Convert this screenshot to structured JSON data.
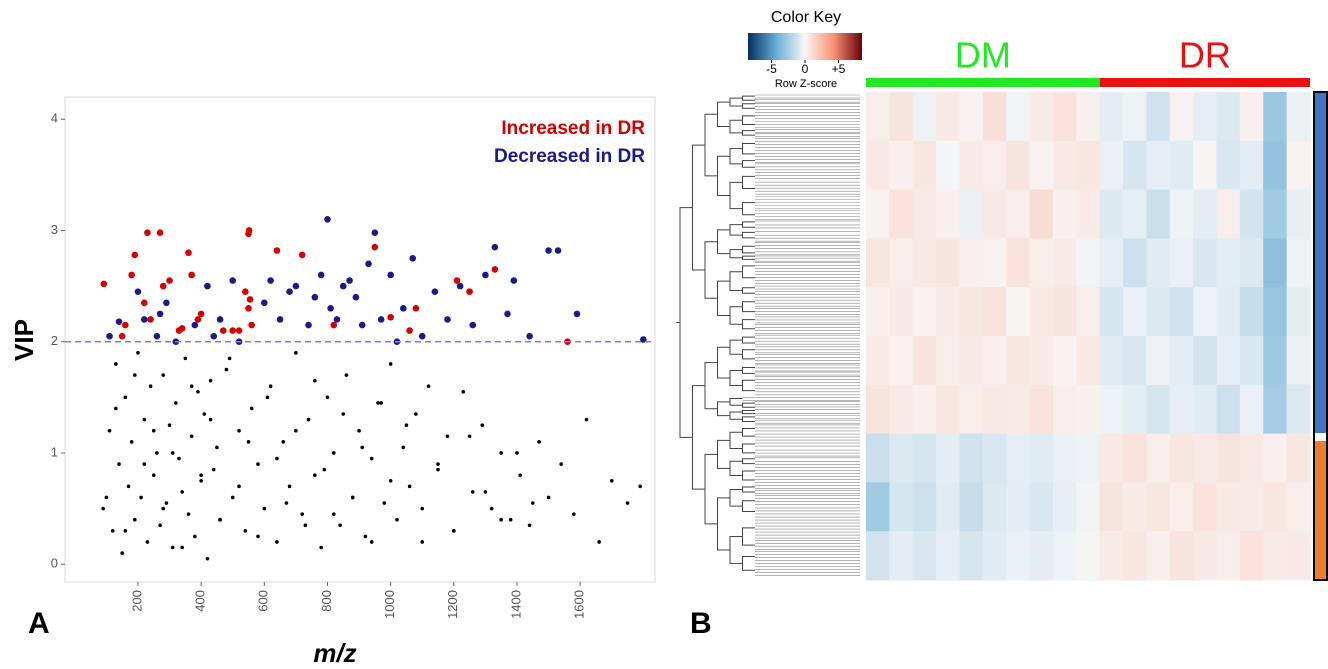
{
  "chart_data": [
    {
      "type": "scatter",
      "panel_label": "A",
      "x_label": "m/z",
      "y_label": "VIP",
      "xlim": [
        -31,
        1837
      ],
      "ylim": [
        -0.16,
        4.2
      ],
      "xticks": [
        200,
        400,
        600,
        800,
        1000,
        1200,
        1400,
        1600
      ],
      "yticks": [
        0,
        1,
        2,
        3,
        4
      ],
      "threshold": 2,
      "threshold_color": "#7b7bff",
      "grid": false,
      "legend": "top-right",
      "series": [
        {
          "name": "Increased in DR",
          "color": "#d40000",
          "x": [
            92,
            150,
            160,
            180,
            190,
            220,
            230,
            240,
            270,
            280,
            300,
            330,
            340,
            360,
            370,
            390,
            400,
            470,
            500,
            520,
            540,
            550,
            550,
            552,
            555,
            560,
            640,
            720,
            820,
            950,
            1000,
            1060,
            1080,
            1210,
            1250,
            1330,
            1560
          ],
          "values": [
            2.52,
            2.05,
            2.15,
            2.6,
            2.78,
            2.35,
            2.98,
            2.2,
            2.98,
            2.5,
            2.55,
            2.1,
            2.12,
            2.8,
            2.6,
            2.2,
            2.25,
            2.1,
            2.1,
            2.1,
            2.45,
            2.3,
            2.97,
            3.0,
            2.38,
            2.15,
            2.82,
            2.78,
            2.15,
            2.85,
            2.22,
            2.1,
            2.3,
            2.55,
            2.45,
            2.65,
            2.0
          ]
        },
        {
          "name": "Decreased in DR",
          "color": "#1a1a8c",
          "x": [
            110,
            140,
            200,
            220,
            260,
            270,
            290,
            320,
            380,
            420,
            440,
            460,
            500,
            520,
            600,
            620,
            650,
            680,
            700,
            740,
            760,
            780,
            800,
            810,
            830,
            850,
            870,
            890,
            910,
            930,
            950,
            970,
            1000,
            1020,
            1040,
            1070,
            1100,
            1140,
            1180,
            1220,
            1260,
            1300,
            1330,
            1370,
            1390,
            1440,
            1500,
            1530,
            1590,
            1800
          ],
          "values": [
            2.05,
            2.18,
            2.45,
            2.2,
            2.05,
            2.25,
            2.35,
            2.0,
            2.15,
            2.5,
            2.05,
            2.2,
            2.55,
            2.0,
            2.35,
            2.55,
            2.2,
            2.45,
            2.5,
            2.15,
            2.4,
            2.6,
            3.1,
            2.3,
            2.2,
            2.5,
            2.55,
            2.4,
            2.15,
            2.7,
            2.98,
            2.2,
            2.6,
            2.0,
            2.3,
            2.75,
            2.05,
            2.45,
            2.2,
            2.5,
            2.15,
            2.6,
            2.85,
            2.25,
            2.55,
            2.05,
            2.82,
            2.82,
            2.25,
            2.02
          ]
        },
        {
          "color": "#000000",
          "x": [
            90,
            110,
            120,
            130,
            140,
            150,
            160,
            170,
            180,
            190,
            200,
            210,
            220,
            230,
            240,
            250,
            260,
            270,
            280,
            290,
            300,
            310,
            320,
            330,
            340,
            350,
            360,
            370,
            380,
            390,
            400,
            410,
            420,
            430,
            440,
            450,
            460,
            480,
            500,
            520,
            540,
            560,
            580,
            600,
            620,
            640,
            660,
            680,
            700,
            720,
            740,
            760,
            780,
            800,
            820,
            840,
            860,
            880,
            900,
            920,
            940,
            960,
            980,
            1000,
            1020,
            1040,
            1060,
            1080,
            1100,
            1120,
            1150,
            1180,
            1200,
            1230,
            1260,
            1290,
            1320,
            1350,
            1380,
            1410,
            1440,
            1470,
            1500,
            1540,
            1580,
            1620,
            1660,
            1700,
            1750,
            1790,
            100,
            130,
            160,
            190,
            220,
            250,
            280,
            310,
            340,
            370,
            400,
            430,
            460,
            490,
            520,
            550,
            580,
            610,
            640,
            670,
            700,
            730,
            760,
            790,
            820,
            850,
            880,
            910,
            940,
            970,
            1000,
            1050,
            1100,
            1150,
            1200,
            1250,
            1300,
            1350,
            1400,
            1450
          ],
          "values": [
            0.5,
            1.2,
            0.3,
            1.8,
            0.9,
            0.1,
            1.5,
            0.7,
            1.1,
            0.4,
            1.9,
            0.6,
            1.3,
            0.2,
            1.6,
            0.8,
            1.0,
            0.35,
            1.7,
            0.55,
            1.25,
            0.15,
            1.45,
            0.95,
            0.65,
            1.85,
            0.45,
            1.15,
            0.25,
            1.55,
            0.75,
            1.35,
            0.05,
            1.65,
            0.85,
            1.05,
            0.4,
            1.75,
            0.6,
            1.2,
            0.3,
            1.4,
            0.9,
            0.5,
            1.6,
            0.2,
            1.1,
            0.7,
            1.9,
            0.45,
            1.3,
            0.8,
            0.15,
            1.5,
            1.0,
            0.35,
            1.7,
            0.6,
            1.2,
            0.25,
            0.95,
            1.45,
            0.55,
            1.8,
            0.4,
            1.05,
            0.7,
            1.35,
            0.2,
            1.6,
            0.85,
            1.15,
            0.3,
            1.55,
            0.65,
            1.25,
            0.5,
            1.0,
            0.4,
            0.8,
            0.35,
            1.1,
            0.6,
            0.9,
            0.45,
            1.3,
            0.2,
            0.75,
            0.55,
            0.7,
            0.6,
            1.4,
            0.3,
            1.7,
            0.9,
            1.2,
            0.5,
            1.0,
            0.15,
            1.6,
            0.8,
            1.3,
            0.4,
            1.85,
            0.7,
            1.1,
            0.25,
            1.5,
            0.95,
            0.55,
            1.2,
            0.35,
            1.65,
            0.85,
            0.45,
            1.35,
            0.6,
            1.05,
            0.2,
            1.45,
            0.75,
            1.25,
            0.5,
            0.9,
            0.3,
            1.15,
            0.65,
            0.4,
            1.0,
            0.55
          ]
        }
      ]
    },
    {
      "type": "heatmap",
      "panel_label": "B",
      "key_title": "Color Key",
      "key_label": "Row Z-score",
      "zlim": [
        -8.5,
        8.5
      ],
      "zticks": [
        -5,
        0,
        {
          "value": 5,
          "label": "+5"
        }
      ],
      "colors": [
        "#053061",
        "#6baed6",
        "#f7f7f7",
        "#fc9272",
        "#67000d"
      ],
      "groups": [
        {
          "name": "DM",
          "color": "#22e822",
          "values": [
            [
              0.4,
              0.8,
              -0.3,
              0.6,
              0.2,
              1.0,
              -0.2,
              0.5,
              0.9,
              0.3
            ],
            [
              0.6,
              0.3,
              0.7,
              -0.1,
              0.5,
              0.4,
              0.8,
              0.2,
              0.6,
              0.7
            ],
            [
              0.2,
              0.9,
              0.5,
              0.3,
              -0.4,
              0.6,
              0.4,
              1.1,
              0.3,
              0.5
            ],
            [
              0.7,
              0.4,
              0.6,
              0.8,
              0.3,
              0.2,
              0.9,
              0.4,
              0.5,
              -0.2
            ],
            [
              0.3,
              0.6,
              0.2,
              0.5,
              0.7,
              0.9,
              0.1,
              0.6,
              0.8,
              0.4
            ],
            [
              0.5,
              0.2,
              0.8,
              0.4,
              0.6,
              0.3,
              0.7,
              0.5,
              0.2,
              0.6
            ],
            [
              0.8,
              0.5,
              0.3,
              0.7,
              0.4,
              0.6,
              0.5,
              0.9,
              0.4,
              0.3
            ],
            [
              -1.4,
              -0.8,
              -1.0,
              -0.6,
              -1.2,
              -0.9,
              -0.5,
              -0.7,
              -0.4,
              -0.3
            ],
            [
              -2.6,
              -1.0,
              -1.3,
              -0.7,
              -1.5,
              -0.8,
              -0.6,
              -0.9,
              -0.5,
              -0.2
            ],
            [
              -1.1,
              -0.6,
              -0.9,
              -0.5,
              -1.0,
              -0.7,
              -0.4,
              -0.6,
              -0.3,
              0.1
            ]
          ]
        },
        {
          "name": "DR",
          "color": "#e81010",
          "values": [
            [
              -0.6,
              -0.3,
              -1.2,
              0.2,
              -0.5,
              -0.8,
              0.3,
              -2.8,
              -0.4
            ],
            [
              -0.4,
              -1.0,
              -0.5,
              -0.7,
              0.1,
              -0.9,
              -0.6,
              -3.0,
              0.2
            ],
            [
              -0.8,
              -0.5,
              -1.4,
              -0.3,
              -0.6,
              0.4,
              -1.1,
              -2.6,
              -0.5
            ],
            [
              -0.5,
              -1.3,
              -0.7,
              -0.4,
              -0.9,
              -0.6,
              -0.8,
              -3.2,
              -0.3
            ],
            [
              -1.0,
              -0.4,
              -0.8,
              -1.2,
              -0.3,
              -0.7,
              -1.5,
              -2.9,
              -0.6
            ],
            [
              -0.7,
              -0.9,
              -0.3,
              -0.6,
              -1.1,
              -0.5,
              -0.9,
              -2.7,
              -0.4
            ],
            [
              -0.3,
              -0.6,
              -1.0,
              -0.5,
              -0.7,
              -1.3,
              -0.4,
              -2.5,
              -0.8
            ],
            [
              0.6,
              0.9,
              0.4,
              0.7,
              0.5,
              0.8,
              0.6,
              0.3,
              0.7
            ],
            [
              0.8,
              0.5,
              0.7,
              0.4,
              0.9,
              0.6,
              0.5,
              0.7,
              0.4
            ],
            [
              0.5,
              0.7,
              0.3,
              0.8,
              0.6,
              0.4,
              0.9,
              0.5,
              0.6
            ]
          ]
        }
      ]
    }
  ]
}
